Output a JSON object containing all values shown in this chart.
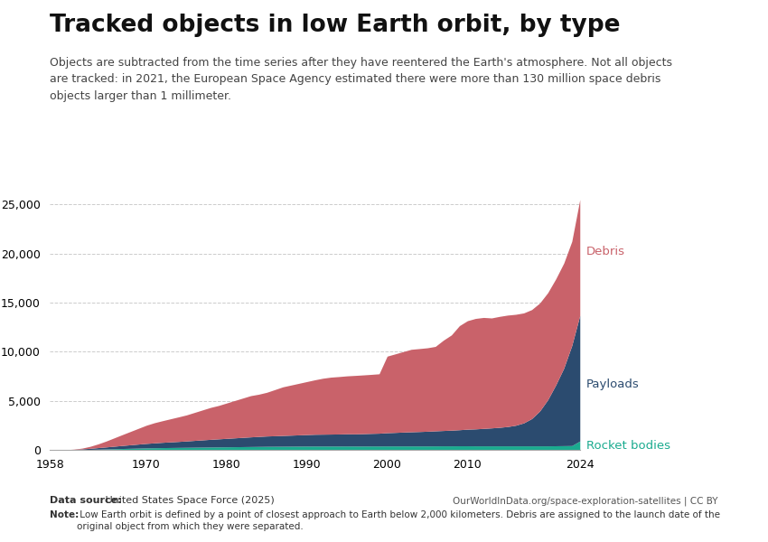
{
  "title": "Tracked objects in low Earth orbit, by type",
  "subtitle": "Objects are subtracted from the time series after they have reentered the Earth's atmosphere. Not all objects\nare tracked: in 2021, the European Space Agency estimated there were more than 130 million space debris\nobjects larger than 1 millimeter.",
  "datasource_bold": "Data source:",
  "datasource_normal": " United States Space Force (2025)",
  "url": "OurWorldInData.org/space-exploration-satellites | CC BY",
  "note_bold": "Note:",
  "note_normal": " Low Earth orbit is defined by a point of closest approach to Earth below 2,000 kilometers. Debris are assigned to the launch date of the\noriginal object from which they were separated.",
  "ylim": [
    0,
    26500
  ],
  "xlim": [
    1958,
    2024
  ],
  "colors": {
    "rocket_bodies": "#1aab8f",
    "payloads": "#2b4b6f",
    "debris": "#c9626a"
  },
  "labels": {
    "rocket_bodies": "Rocket bodies",
    "payloads": "Payloads",
    "debris": "Debris"
  },
  "years": [
    1958,
    1959,
    1960,
    1961,
    1962,
    1963,
    1964,
    1965,
    1966,
    1967,
    1968,
    1969,
    1970,
    1971,
    1972,
    1973,
    1974,
    1975,
    1976,
    1977,
    1978,
    1979,
    1980,
    1981,
    1982,
    1983,
    1984,
    1985,
    1986,
    1987,
    1988,
    1989,
    1990,
    1991,
    1992,
    1993,
    1994,
    1995,
    1996,
    1997,
    1998,
    1999,
    2000,
    2001,
    2002,
    2003,
    2004,
    2005,
    2006,
    2007,
    2008,
    2009,
    2010,
    2011,
    2012,
    2013,
    2014,
    2015,
    2016,
    2017,
    2018,
    2019,
    2020,
    2021,
    2022,
    2023,
    2024
  ],
  "rocket_bodies": [
    0,
    1,
    3,
    10,
    25,
    45,
    65,
    85,
    110,
    135,
    155,
    175,
    195,
    210,
    225,
    235,
    245,
    255,
    265,
    275,
    285,
    295,
    305,
    315,
    325,
    335,
    345,
    355,
    360,
    365,
    370,
    375,
    380,
    385,
    385,
    385,
    385,
    390,
    385,
    385,
    390,
    390,
    395,
    395,
    395,
    395,
    395,
    395,
    400,
    405,
    405,
    410,
    410,
    405,
    405,
    405,
    405,
    405,
    405,
    405,
    405,
    405,
    405,
    415,
    425,
    435,
    900
  ],
  "payloads": [
    1,
    2,
    8,
    30,
    70,
    110,
    160,
    210,
    260,
    310,
    360,
    410,
    460,
    500,
    540,
    575,
    610,
    650,
    695,
    740,
    785,
    825,
    865,
    905,
    945,
    985,
    1020,
    1055,
    1075,
    1100,
    1125,
    1150,
    1175,
    1200,
    1210,
    1220,
    1230,
    1245,
    1245,
    1265,
    1285,
    1305,
    1350,
    1380,
    1415,
    1445,
    1470,
    1500,
    1535,
    1565,
    1600,
    1640,
    1695,
    1730,
    1780,
    1830,
    1890,
    1970,
    2100,
    2340,
    2780,
    3550,
    4700,
    6200,
    7900,
    10200,
    12800
  ],
  "debris": [
    0,
    0,
    5,
    30,
    80,
    200,
    380,
    600,
    850,
    1100,
    1350,
    1600,
    1850,
    2050,
    2200,
    2350,
    2500,
    2650,
    2850,
    3050,
    3250,
    3400,
    3600,
    3800,
    4000,
    4200,
    4300,
    4450,
    4700,
    4950,
    5100,
    5250,
    5400,
    5550,
    5700,
    5800,
    5850,
    5900,
    5950,
    5980,
    6010,
    6050,
    7800,
    8000,
    8200,
    8400,
    8450,
    8500,
    8600,
    9200,
    9700,
    10600,
    11050,
    11250,
    11300,
    11200,
    11300,
    11350,
    11300,
    11200,
    11100,
    11000,
    10900,
    10800,
    10700,
    10600,
    11800
  ],
  "yticks": [
    0,
    5000,
    10000,
    15000,
    20000,
    25000
  ],
  "xticks": [
    1958,
    1970,
    1980,
    1990,
    2000,
    2010,
    2024
  ],
  "background_color": "#ffffff",
  "title_fontsize": 19,
  "subtitle_fontsize": 9,
  "tick_fontsize": 9,
  "logo_bg": "#1a3560",
  "logo_red": "#c0392b"
}
